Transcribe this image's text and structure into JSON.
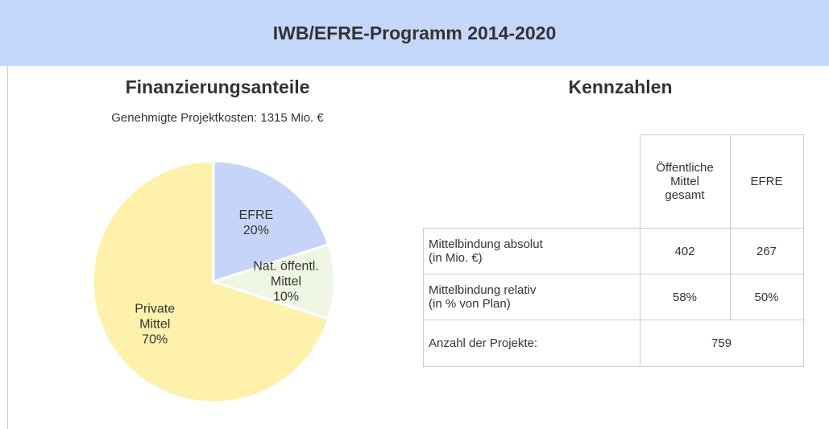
{
  "header": {
    "title": "IWB/EFRE-Programm 2014-2020"
  },
  "chart_data": {
    "type": "pie",
    "title": "Finanzierungsanteile",
    "subtitle": "Genehmigte Projektkosten: 1315 Mio. €",
    "categories": [
      "EFRE",
      "Nat. öffentl.\nMittel",
      "Private\nMittel"
    ],
    "values": [
      20,
      10,
      70
    ],
    "value_labels": [
      "20%",
      "10%",
      "70%"
    ],
    "colors": [
      "#c6d5f7",
      "#eff6e4",
      "#fdf1ab"
    ]
  },
  "table": {
    "title": "Kennzahlen",
    "columns": [
      "Öffentliche\nMittel\ngesamt",
      "EFRE"
    ],
    "rows": [
      {
        "label": "Mittelbindung absolut\n(in Mio. €)",
        "cells": [
          "402",
          "267"
        ]
      },
      {
        "label": "Mittelbindung relativ\n(in % von Plan)",
        "cells": [
          "58%",
          "50%"
        ]
      },
      {
        "label": "Anzahl der Projekte:",
        "cells": [
          "759"
        ]
      }
    ]
  }
}
